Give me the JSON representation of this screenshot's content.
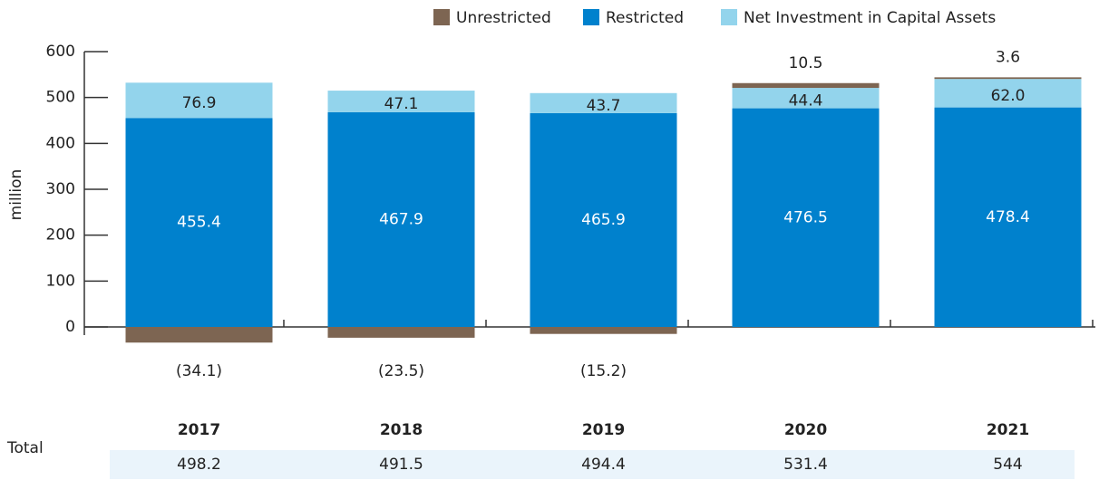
{
  "chart_data": {
    "type": "stacked_bar",
    "y_label": "million",
    "categories": [
      "2017",
      "2018",
      "2019",
      "2020",
      "2021"
    ],
    "series": [
      {
        "name": "Unrestricted",
        "color": "#7d6552",
        "values": [
          -34.1,
          -23.5,
          -15.2,
          10.5,
          3.6
        ],
        "value_labels": [
          "(34.1)",
          "(23.5)",
          "(15.2)",
          "10.5",
          "3.6"
        ]
      },
      {
        "name": "Restricted",
        "color": "#0081cd",
        "values": [
          455.4,
          467.9,
          465.9,
          476.5,
          478.4
        ]
      },
      {
        "name": "Net Investment in Capital Assets",
        "color": "#93d4ec",
        "values": [
          76.9,
          47.1,
          43.7,
          44.4,
          62.0
        ],
        "value_labels": [
          "76.9",
          "47.1",
          "43.7",
          "44.4",
          "62.0"
        ]
      }
    ],
    "ylim": [
      0,
      600
    ],
    "yticks": [
      0,
      100,
      200,
      300,
      400,
      500,
      600
    ],
    "totals_label": "Total",
    "totals": [
      498.2,
      491.5,
      494.4,
      531.4,
      544
    ]
  }
}
